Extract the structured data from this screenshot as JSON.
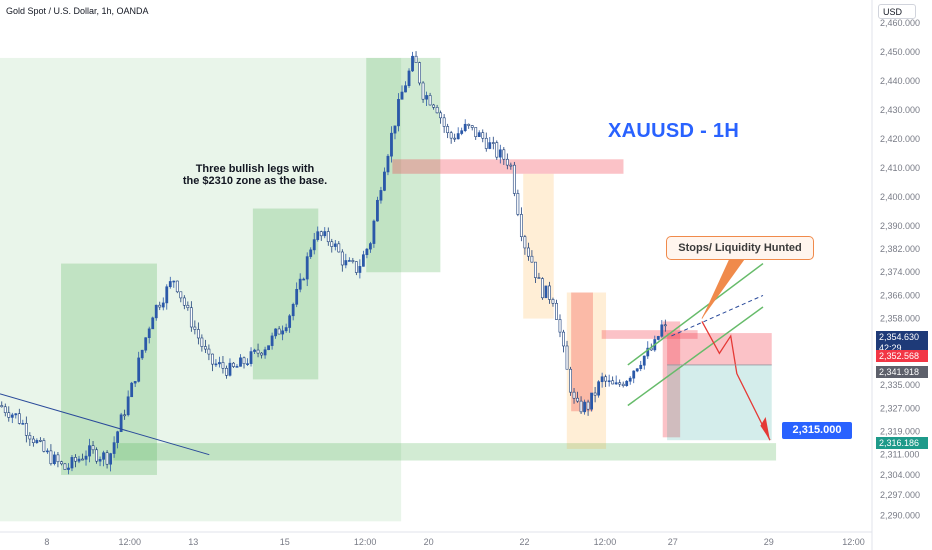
{
  "header": {
    "symbol_line": "Gold Spot / U.S. Dollar, 1h, OANDA",
    "currency": "USD"
  },
  "annotations": {
    "title": "XAUUSD - 1H",
    "note_line1": "Three bullish legs with",
    "note_line2": "the $2310 zone as the base.",
    "callout": "Stops/ Liquidity Hunted",
    "target_label": "2,315.000"
  },
  "price_badges": {
    "last_price": "2,354.630",
    "countdown": "42:29",
    "red_level": "2,352.568",
    "gray_level": "2,341.918",
    "teal_level": "2,316.186"
  },
  "colors": {
    "accent": "#2962ff",
    "bull_candle": "#2a58a8",
    "bear_candle": "#1c3f7a",
    "green_zone": "#4caf50",
    "red_zone": "#f23645",
    "orange_zone": "#ff9800",
    "teal_zone": "#26a69a"
  },
  "chart_data": {
    "type": "candlestick",
    "title": "Gold Spot / U.S. Dollar, 1h, OANDA",
    "ylim": [
      2285,
      2468
    ],
    "x_ticks": [
      "8",
      "12:00",
      "13",
      "15",
      "12:00",
      "20",
      "22",
      "12:00",
      "27",
      "29",
      "12:00"
    ],
    "y_ticks": [
      2290,
      2297,
      2304,
      2311,
      2319,
      2327,
      2335,
      2343,
      2351,
      2358,
      2366,
      2374,
      2382,
      2390,
      2400,
      2410,
      2420,
      2430,
      2440,
      2450,
      2460,
      2470
    ],
    "y_tick_labels": [
      "2,290.000",
      "2,297.000",
      "2,304.000",
      "2,311.000",
      "2,319.000",
      "2,327.000",
      "2,335.000",
      "",
      "",
      "2,358.000",
      "2,366.000",
      "2,374.000",
      "2,382.000",
      "2,390.000",
      "2,400.000",
      "2,410.000",
      "2,420.000",
      "2,430.000",
      "2,440.000",
      "2,450.000",
      "2,460.000",
      "2,470.000"
    ],
    "price_path": [
      [
        0,
        2328
      ],
      [
        0.02,
        2324
      ],
      [
        0.05,
        2312
      ],
      [
        0.075,
        2306
      ],
      [
        0.1,
        2312
      ],
      [
        0.125,
        2310
      ],
      [
        0.15,
        2333
      ],
      [
        0.175,
        2360
      ],
      [
        0.2,
        2372
      ],
      [
        0.215,
        2360
      ],
      [
        0.24,
        2343
      ],
      [
        0.265,
        2340
      ],
      [
        0.29,
        2345
      ],
      [
        0.31,
        2350
      ],
      [
        0.33,
        2358
      ],
      [
        0.345,
        2370
      ],
      [
        0.36,
        2387
      ],
      [
        0.38,
        2385
      ],
      [
        0.395,
        2377
      ],
      [
        0.41,
        2375
      ],
      [
        0.425,
        2385
      ],
      [
        0.44,
        2410
      ],
      [
        0.46,
        2435
      ],
      [
        0.475,
        2448
      ],
      [
        0.485,
        2436
      ],
      [
        0.5,
        2432
      ],
      [
        0.515,
        2420
      ],
      [
        0.535,
        2424
      ],
      [
        0.555,
        2420
      ],
      [
        0.57,
        2415
      ],
      [
        0.585,
        2412
      ],
      [
        0.6,
        2385
      ],
      [
        0.61,
        2378
      ],
      [
        0.62,
        2368
      ],
      [
        0.635,
        2365
      ],
      [
        0.65,
        2340
      ],
      [
        0.66,
        2327
      ],
      [
        0.675,
        2328
      ],
      [
        0.69,
        2337
      ],
      [
        0.705,
        2334
      ],
      [
        0.72,
        2338
      ],
      [
        0.735,
        2344
      ],
      [
        0.75,
        2348
      ],
      [
        0.76,
        2356
      ],
      [
        0.765,
        2353
      ]
    ],
    "zones": [
      {
        "color": "green",
        "x0": 0.0,
        "x1": 0.46,
        "y0": 2288,
        "y1": 2448
      },
      {
        "color": "green",
        "x0": 0.07,
        "x1": 0.18,
        "y0": 2304,
        "y1": 2377
      },
      {
        "color": "green",
        "x0": 0.29,
        "x1": 0.365,
        "y0": 2337,
        "y1": 2396
      },
      {
        "color": "green",
        "x0": 0.42,
        "x1": 0.505,
        "y0": 2374,
        "y1": 2448
      },
      {
        "color": "green",
        "x0": 0.13,
        "x1": 0.89,
        "y0": 2309,
        "y1": 2315
      },
      {
        "color": "red",
        "x0": 0.45,
        "x1": 0.715,
        "y0": 2408,
        "y1": 2413
      },
      {
        "color": "orange",
        "x0": 0.6,
        "x1": 0.635,
        "y0": 2358,
        "y1": 2408
      },
      {
        "color": "red",
        "x0": 0.655,
        "x1": 0.68,
        "y0": 2326,
        "y1": 2367
      },
      {
        "color": "orange",
        "x0": 0.65,
        "x1": 0.695,
        "y0": 2313,
        "y1": 2367
      },
      {
        "color": "red",
        "x0": 0.69,
        "x1": 0.8,
        "y0": 2351,
        "y1": 2354
      },
      {
        "color": "red",
        "x0": 0.76,
        "x1": 0.78,
        "y0": 2317,
        "y1": 2357
      },
      {
        "color": "red",
        "x0": 0.765,
        "x1": 0.885,
        "y0": 2342,
        "y1": 2353
      },
      {
        "color": "teal",
        "x0": 0.765,
        "x1": 0.885,
        "y0": 2316,
        "y1": 2342
      }
    ],
    "levels": {
      "resistance_zone": 2410,
      "support_zone": 2312,
      "target": 2315
    }
  }
}
